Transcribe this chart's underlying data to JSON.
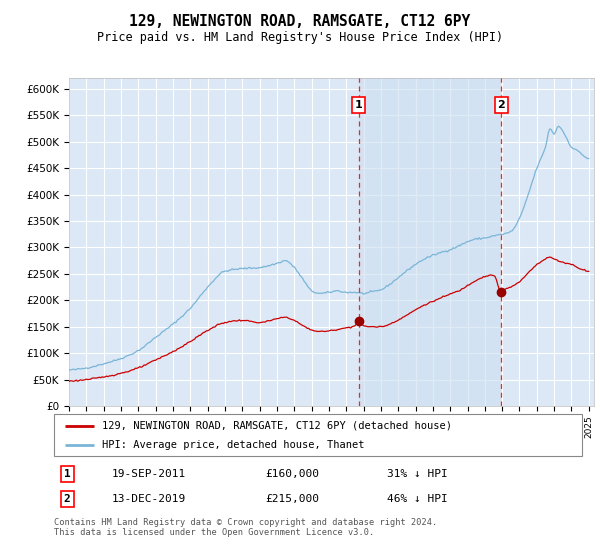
{
  "title": "129, NEWINGTON ROAD, RAMSGATE, CT12 6PY",
  "subtitle": "Price paid vs. HM Land Registry's House Price Index (HPI)",
  "ylim": [
    0,
    620000
  ],
  "yticks": [
    0,
    50000,
    100000,
    150000,
    200000,
    250000,
    300000,
    350000,
    400000,
    450000,
    500000,
    550000,
    600000
  ],
  "ytick_labels": [
    "£0",
    "£50K",
    "£100K",
    "£150K",
    "£200K",
    "£250K",
    "£300K",
    "£350K",
    "£400K",
    "£450K",
    "£500K",
    "£550K",
    "£600K"
  ],
  "xlim_start": 1995.0,
  "xlim_end": 2025.3,
  "bg_color": "#dce8f5",
  "grid_color": "#ffffff",
  "hpi_line_color": "#7ab5d8",
  "price_line_color": "#cc0000",
  "shade_color": "#ccdff0",
  "marker1_date": 2011.72,
  "marker1_price": 160000,
  "marker1_label": "1",
  "marker1_date_str": "19-SEP-2011",
  "marker1_price_str": "£160,000",
  "marker1_note": "31% ↓ HPI",
  "marker2_date": 2019.95,
  "marker2_price": 215000,
  "marker2_label": "2",
  "marker2_date_str": "13-DEC-2019",
  "marker2_price_str": "£215,000",
  "marker2_note": "46% ↓ HPI",
  "legend_line1": "129, NEWINGTON ROAD, RAMSGATE, CT12 6PY (detached house)",
  "legend_line2": "HPI: Average price, detached house, Thanet",
  "footnote": "Contains HM Land Registry data © Crown copyright and database right 2024.\nThis data is licensed under the Open Government Licence v3.0."
}
